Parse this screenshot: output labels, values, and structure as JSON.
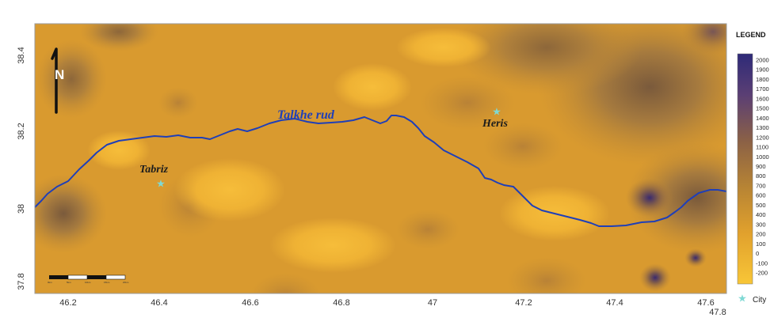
{
  "map": {
    "x_ticks": [
      "46.2",
      "46.4",
      "46.6",
      "46.8",
      "47",
      "47.2",
      "47.4",
      "47.6",
      "47.8"
    ],
    "y_ticks": [
      "38.4",
      "38.2",
      "38",
      "37.8"
    ],
    "north_label": "N",
    "river_label": "Talkhe  rud",
    "cities": [
      {
        "name": "Tabriz",
        "lon": 46.435,
        "lat": 38.075
      },
      {
        "name": "Heris",
        "lon": 47.3,
        "lat": 38.25
      }
    ],
    "scale_bar_labels": [
      "0km",
      "5km",
      "10km",
      "15km",
      "20km"
    ],
    "colors": {
      "base": "#e4a12e",
      "river": "#1f3fb8",
      "city_marker": "#7fd9d4",
      "high_value": "#2e2a6e",
      "low_value": "#f7c235"
    }
  },
  "legend": {
    "title": "LEGEND",
    "ticks": [
      "2000",
      "1900",
      "1800",
      "1700",
      "1600",
      "1500",
      "1400",
      "1300",
      "1200",
      "1100",
      "1000",
      "900",
      "800",
      "700",
      "600",
      "500",
      "400",
      "300",
      "200",
      "100",
      "0",
      "-100",
      "-200"
    ],
    "city_label": "City"
  }
}
